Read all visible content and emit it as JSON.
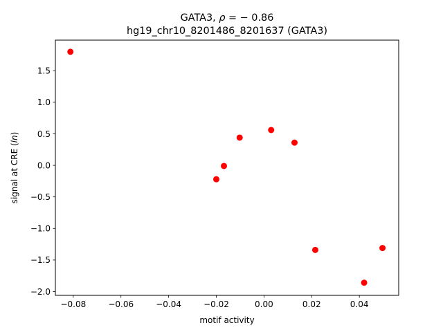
{
  "chart_data": {
    "type": "scatter",
    "title_line1": "GATA3, ρ = − 0.86",
    "title_line2": "hg19_chr10_8201486_8201637 (GATA3)",
    "xlabel": "motif activity",
    "ylabel": "signal at CRE (ln)",
    "xlim": [
      -0.0875,
      0.0565
    ],
    "ylim": [
      -2.06,
      1.985
    ],
    "xticks": [
      {
        "value": -0.08,
        "label": "−0.08"
      },
      {
        "value": -0.06,
        "label": "−0.06"
      },
      {
        "value": -0.04,
        "label": "−0.04"
      },
      {
        "value": -0.02,
        "label": "−0.02"
      },
      {
        "value": 0.0,
        "label": "0.00"
      },
      {
        "value": 0.02,
        "label": "0.02"
      },
      {
        "value": 0.04,
        "label": "0.04"
      }
    ],
    "yticks": [
      {
        "value": 1.5,
        "label": "1.5"
      },
      {
        "value": 1.0,
        "label": "1.0"
      },
      {
        "value": 0.5,
        "label": "0.5"
      },
      {
        "value": 0.0,
        "label": "0.0"
      },
      {
        "value": -0.5,
        "label": "−0.5"
      },
      {
        "value": -1.0,
        "label": "−1.0"
      },
      {
        "value": -1.5,
        "label": "−1.5"
      },
      {
        "value": -2.0,
        "label": "−2.0"
      }
    ],
    "marker_color": "#ff0000",
    "points": [
      {
        "x": -0.0812,
        "y": 1.8
      },
      {
        "x": -0.02,
        "y": -0.22
      },
      {
        "x": -0.0168,
        "y": -0.01
      },
      {
        "x": -0.0102,
        "y": 0.44
      },
      {
        "x": 0.003,
        "y": 0.56
      },
      {
        "x": 0.0128,
        "y": 0.36
      },
      {
        "x": 0.0215,
        "y": -1.34
      },
      {
        "x": 0.042,
        "y": -1.86
      },
      {
        "x": 0.0497,
        "y": -1.31
      }
    ],
    "grid": false,
    "legend": "none"
  }
}
